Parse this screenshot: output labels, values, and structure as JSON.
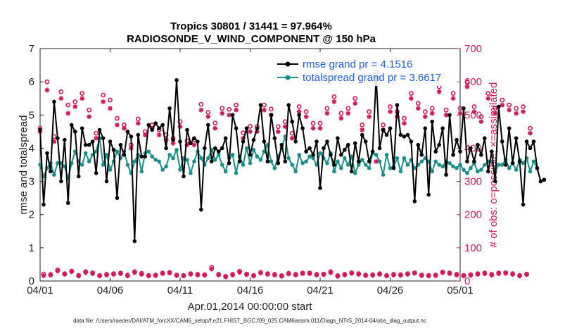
{
  "colors": {
    "rmse": "#000000",
    "spread": "#1a8f8a",
    "obs": "#d0185a",
    "legend_text": "#1f5fe0"
  },
  "chart_data": {
    "type": "line",
    "title_line1": "Tropics 30801 / 31441 = 97.964%",
    "title_line2": "RADIOSONDE_V_WIND_COMPONENT @ 150 hPa",
    "xlabel": "Apr.01,2014 00:00:00 start",
    "ylabel_left": "rmse and totalspread",
    "ylabel_right": "# of obs: o=possible; ×=assimilated",
    "xlim": [
      0,
      30
    ],
    "ylim_left": [
      0,
      7
    ],
    "ylim_right": [
      0,
      700
    ],
    "x_ticks": [
      0,
      5,
      10,
      15,
      20,
      25,
      30
    ],
    "x_tick_labels": [
      "04/01",
      "04/06",
      "04/11",
      "04/16",
      "04/21",
      "04/26",
      "05/01"
    ],
    "y_ticks_left": [
      "0",
      "1",
      "2",
      "3",
      "4",
      "5",
      "6",
      "7"
    ],
    "y_ticks_right": [
      "0",
      "100",
      "200",
      "300",
      "400",
      "500",
      "600",
      "700"
    ],
    "x_step_days": 0.25,
    "series": [
      {
        "name": "rmse grand pr = 4.1516",
        "axis": "left",
        "values": [
          4.55,
          2.3,
          3.85,
          3.3,
          5.4,
          4.3,
          3.0,
          4.25,
          2.35,
          4.7,
          4.5,
          3.15,
          4.6,
          4.1,
          4.1,
          4.2,
          3.25,
          4.55,
          4.3,
          3.0,
          4.2,
          3.95,
          2.5,
          4.1,
          3.8,
          4.5,
          4.35,
          1.2,
          4.4,
          3.75,
          3.75,
          4.7,
          4.55,
          4.75,
          4.6,
          4.7,
          4.0,
          5.2,
          4.25,
          6.05,
          4.2,
          3.15,
          4.55,
          4.15,
          4.3,
          4.2,
          2.15,
          4.0,
          4.7,
          3.6,
          4.0,
          3.9,
          4.0,
          4.3,
          3.55,
          5.0,
          4.6,
          3.6,
          4.2,
          4.6,
          3.8,
          4.25,
          4.6,
          5.3,
          4.2,
          3.6,
          5.0,
          4.3,
          3.55,
          4.1,
          3.6,
          5.3,
          4.8,
          4.2,
          5.0,
          4.6,
          3.9,
          4.0,
          3.8,
          4.2,
          2.8,
          4.0,
          4.2,
          3.8,
          3.5,
          4.3,
          3.8,
          3.95,
          4.1,
          3.3,
          4.15,
          3.6,
          4.4,
          4.2,
          3.6,
          3.9,
          6.15,
          4.0,
          4.55,
          4.4,
          4.6,
          3.4,
          5.3,
          4.4,
          4.35,
          4.4,
          4.2,
          2.4,
          4.1,
          3.8,
          4.6,
          2.6,
          4.8,
          3.9,
          4.1,
          4.6,
          3.2,
          5.0,
          3.8,
          4.25,
          3.9,
          5.2,
          3.6,
          4.0,
          3.6,
          4.1,
          3.8,
          4.3,
          3.3,
          3.9,
          3.0,
          5.25,
          4.2,
          3.5,
          4.6,
          3.55,
          4.3,
          3.6,
          2.3,
          4.2,
          4.0,
          4.2,
          3.4,
          3.0,
          3.05
        ]
      },
      {
        "name": "totalspread grand pr = 3.6617",
        "axis": "left",
        "values": [
          3.5,
          3.15,
          3.4,
          3.55,
          3.2,
          3.55,
          3.55,
          3.45,
          3.1,
          3.55,
          3.9,
          3.6,
          3.5,
          3.85,
          3.6,
          3.8,
          3.9,
          4.3,
          3.5,
          3.8,
          3.35,
          3.6,
          3.9,
          3.7,
          3.9,
          3.5,
          3.25,
          3.6,
          3.8,
          3.3,
          3.85,
          3.9,
          3.75,
          3.65,
          3.6,
          3.35,
          3.45,
          3.8,
          3.7,
          3.95,
          3.35,
          3.7,
          3.65,
          3.25,
          3.6,
          3.9,
          3.7,
          3.5,
          3.7,
          3.95,
          3.65,
          3.8,
          3.5,
          3.3,
          3.7,
          3.8,
          3.25,
          3.75,
          3.5,
          4.0,
          3.55,
          3.95,
          3.75,
          3.65,
          3.9,
          4.1,
          3.6,
          3.4,
          3.75,
          4.0,
          4.35,
          3.7,
          3.5,
          3.3,
          3.8,
          3.55,
          3.6,
          3.75,
          3.7,
          3.5,
          3.85,
          3.7,
          3.55,
          3.85,
          3.3,
          3.6,
          3.4,
          3.7,
          3.5,
          3.75,
          3.25,
          3.5,
          3.65,
          3.5,
          3.4,
          3.85,
          3.8,
          3.6,
          3.2,
          3.8,
          3.4,
          3.45,
          3.7,
          3.3,
          3.7,
          3.5,
          3.65,
          3.4,
          3.5,
          3.6,
          3.7,
          3.6,
          3.3,
          3.6,
          3.5,
          3.45,
          3.6,
          3.55,
          3.45,
          3.4,
          3.5,
          3.35,
          3.25,
          3.4,
          3.55,
          3.3,
          3.35,
          3.5,
          3.6,
          3.6,
          3.3,
          3.5,
          3.5,
          3.65,
          3.4,
          3.55,
          3.35,
          3.65,
          3.55,
          3.7,
          3.3,
          3.6,
          3.4,
          3.0
        ]
      },
      {
        "name": "obs possible",
        "axis": "right",
        "values": [
          460,
          21,
          600,
          18,
          435,
          33,
          570,
          22,
          530,
          30,
          540,
          17,
          565,
          28,
          515,
          25,
          445,
          17,
          560,
          20,
          545,
          22,
          490,
          24,
          470,
          18,
          410,
          28,
          488,
          23,
          450,
          17,
          470,
          18,
          455,
          24,
          440,
          26,
          430,
          18,
          480,
          17,
          422,
          22,
          425,
          20,
          532,
          19,
          508,
          41,
          476,
          20,
          520,
          14,
          517,
          20,
          530,
          29,
          446,
          21,
          466,
          17,
          465,
          26,
          530,
          22,
          518,
          20,
          465,
          16,
          480,
          23,
          445,
          20,
          525,
          24,
          510,
          24,
          475,
          20,
          475,
          21,
          520,
          28,
          555,
          16,
          505,
          20,
          520,
          25,
          550,
          22,
          470,
          18,
          510,
          19,
          630,
          22,
          470,
          17,
          525,
          20,
          510,
          19,
          490,
          22,
          565,
          25,
          535,
          18,
          510,
          17,
          520,
          18,
          585,
          27,
          515,
          24,
          565,
          20,
          520,
          17,
          600,
          19,
          525,
          22,
          495,
          24,
          565,
          20,
          520,
          24,
          545,
          25,
          530,
          22,
          520,
          17,
          525,
          21,
          460
        ]
      },
      {
        "name": "obs assimilated",
        "axis": "right",
        "values": [
          450,
          16,
          575,
          20,
          420,
          30,
          550,
          20,
          505,
          28,
          525,
          15,
          550,
          25,
          495,
          22,
          430,
          15,
          540,
          18,
          520,
          20,
          470,
          22,
          460,
          15,
          400,
          25,
          475,
          20,
          440,
          15,
          460,
          16,
          440,
          22,
          425,
          24,
          415,
          16,
          465,
          15,
          410,
          20,
          410,
          18,
          515,
          17,
          495,
          36,
          460,
          18,
          505,
          12,
          500,
          18,
          515,
          26,
          430,
          19,
          450,
          15,
          450,
          24,
          515,
          20,
          500,
          18,
          450,
          14,
          465,
          21,
          430,
          18,
          510,
          22,
          495,
          22,
          460,
          18,
          460,
          19,
          505,
          25,
          540,
          14,
          490,
          18,
          505,
          23,
          535,
          20,
          455,
          16,
          495,
          17,
          360,
          20,
          455,
          15,
          510,
          18,
          495,
          17,
          475,
          20,
          550,
          23,
          520,
          16,
          495,
          15,
          505,
          16,
          570,
          25,
          500,
          22,
          550,
          18,
          505,
          15,
          585,
          17,
          510,
          20,
          480,
          22,
          550,
          18,
          505,
          22,
          530,
          23,
          515,
          20,
          505,
          15,
          510,
          19,
          445
        ]
      }
    ],
    "legend_position": "top-right"
  },
  "footer": "data file: /Users/raeder/DAI/ATM_forcXX/CAM6_setup/f.e21.FHIST_BGC.f09_025.CAM6assim.011/Diags_NTrS_2014-04/obs_diag_output.nc"
}
